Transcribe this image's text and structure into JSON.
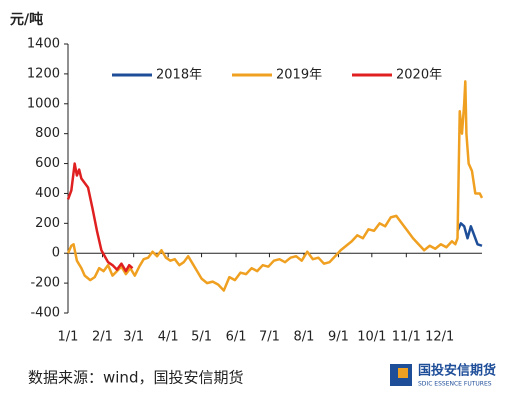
{
  "chart_data": {
    "type": "line",
    "y_label": "元/吨",
    "xlim": [
      0,
      372
    ],
    "xticks": [
      {
        "value": 0,
        "label": "1/1"
      },
      {
        "value": 31,
        "label": "2/1"
      },
      {
        "value": 59,
        "label": "3/1"
      },
      {
        "value": 90,
        "label": "4/1"
      },
      {
        "value": 120,
        "label": "5/1"
      },
      {
        "value": 151,
        "label": "6/1"
      },
      {
        "value": 181,
        "label": "7/1"
      },
      {
        "value": 212,
        "label": "8/1"
      },
      {
        "value": 243,
        "label": "9/1"
      },
      {
        "value": 273,
        "label": "10/1"
      },
      {
        "value": 304,
        "label": "11/1"
      },
      {
        "value": 334,
        "label": "12/1"
      }
    ],
    "ylim": [
      -400,
      1400
    ],
    "yticks": [
      -400,
      -200,
      0,
      200,
      400,
      600,
      800,
      1000,
      1200,
      1400
    ],
    "legend": "top",
    "series": [
      {
        "name": "2018年",
        "color": "#1f4e99",
        "x": [
          350,
          353,
          356,
          359,
          362,
          365,
          368,
          372
        ],
        "values": [
          150,
          200,
          180,
          100,
          180,
          120,
          60,
          50
        ]
      },
      {
        "name": "2019年",
        "color": "#f0a020",
        "x": [
          0,
          3,
          5,
          8,
          12,
          15,
          20,
          24,
          28,
          32,
          36,
          40,
          44,
          48,
          52,
          56,
          60,
          64,
          68,
          72,
          76,
          80,
          84,
          88,
          92,
          96,
          100,
          104,
          108,
          112,
          116,
          120,
          125,
          130,
          135,
          140,
          145,
          150,
          155,
          160,
          165,
          170,
          175,
          180,
          185,
          190,
          195,
          200,
          205,
          210,
          215,
          220,
          225,
          230,
          235,
          240,
          245,
          250,
          255,
          260,
          265,
          270,
          275,
          280,
          285,
          290,
          295,
          300,
          305,
          310,
          315,
          320,
          325,
          330,
          335,
          340,
          345,
          348,
          350,
          352,
          354,
          356,
          357,
          358,
          360,
          363,
          366,
          370,
          372
        ],
        "values": [
          0,
          50,
          60,
          -50,
          -100,
          -150,
          -180,
          -160,
          -100,
          -120,
          -80,
          -150,
          -120,
          -90,
          -140,
          -100,
          -150,
          -90,
          -40,
          -30,
          10,
          -20,
          20,
          -30,
          -50,
          -40,
          -80,
          -60,
          -20,
          -70,
          -120,
          -170,
          -200,
          -190,
          -210,
          -250,
          -160,
          -180,
          -130,
          -140,
          -100,
          -120,
          -80,
          -90,
          -50,
          -40,
          -60,
          -30,
          -20,
          -50,
          10,
          -40,
          -30,
          -70,
          -60,
          -20,
          20,
          50,
          80,
          120,
          100,
          160,
          150,
          200,
          180,
          240,
          250,
          200,
          150,
          100,
          60,
          20,
          50,
          30,
          60,
          40,
          80,
          60,
          100,
          950,
          800,
          1000,
          1150,
          800,
          600,
          550,
          400,
          400,
          370
        ]
      },
      {
        "name": "2020年",
        "color": "#e02020",
        "x": [
          0,
          3,
          6,
          8,
          10,
          12,
          18,
          22,
          26,
          30,
          33,
          36,
          40,
          44,
          48,
          52,
          55,
          58
        ],
        "values": [
          360,
          420,
          600,
          520,
          560,
          500,
          440,
          300,
          150,
          20,
          -20,
          -60,
          -80,
          -110,
          -70,
          -120,
          -80,
          -100
        ]
      }
    ],
    "source": "数据来源：wind，国投安信期货",
    "logo_name": "国投安信期货",
    "logo_sub": "SDIC ESSENCE FUTURES"
  }
}
